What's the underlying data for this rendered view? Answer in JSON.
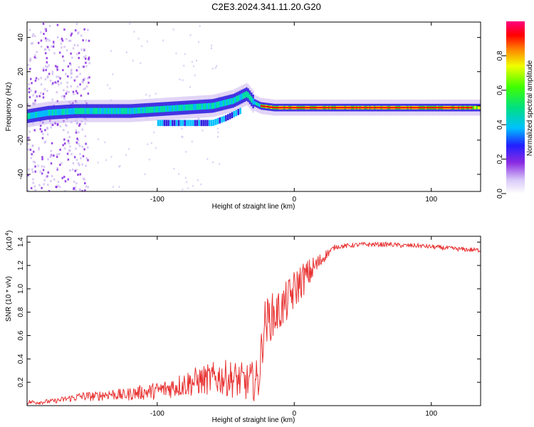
{
  "figure_title": "C2E3.2024.341.11.20.G20",
  "colors": {
    "signal_line": "#e83232",
    "axis": "#000000",
    "background": "#ffffff",
    "spectrogram_peak": "#ff0000",
    "spectrogram_mid": "#00e5a0",
    "spectrogram_low": "#3020e0",
    "spectrogram_faint": "#c8b0f0"
  },
  "chart_data": [
    {
      "type": "heatmap",
      "title": "",
      "xlabel": "Height of straight line (km)",
      "ylabel": "Frequency (Hz)",
      "xlim": [
        -195,
        136
      ],
      "ylim": [
        -50,
        49
      ],
      "x_ticks": [
        -100,
        0,
        100
      ],
      "y_ticks": [
        -40,
        -20,
        0,
        20,
        40
      ],
      "grid": false,
      "colorbar": {
        "label": "Normalized spectral amplitude",
        "range": [
          0,
          1
        ],
        "ticks": [
          "0.0",
          "0.2",
          "0.4",
          "0.6",
          "0.8"
        ],
        "colormap": "rainbow (white-violet → blue → cyan → green → yellow → red → magenta)"
      },
      "ridge": {
        "description": "dominant Doppler frequency track",
        "x_km": [
          -195,
          -180,
          -160,
          -140,
          -120,
          -100,
          -80,
          -60,
          -45,
          -35,
          -30,
          -25,
          -15,
          0,
          20,
          50,
          80,
          110,
          136
        ],
        "frequency_hz": [
          -6,
          -4,
          -3,
          -3,
          -3,
          -2,
          -1,
          0,
          3,
          7,
          2,
          0,
          -1,
          -1,
          -1,
          -1,
          -1,
          -1,
          -1
        ],
        "secondary_branch_x_km": [
          -100,
          -80,
          -60,
          -50,
          -40
        ],
        "secondary_branch_hz": [
          -10,
          -10,
          -10,
          -7,
          -3
        ],
        "peak_amplitude_region_km": [
          -25,
          136
        ]
      }
    },
    {
      "type": "line",
      "title": "",
      "xlabel": "Height of straight line (km)",
      "ylabel": "SNR (10 * v/v)",
      "y_multiplier": "(x10^4)",
      "xlim": [
        -195,
        136
      ],
      "ylim": [
        0,
        1.45
      ],
      "x_ticks": [
        -100,
        0,
        100
      ],
      "y_ticks": [
        "0.2",
        "0.4",
        "0.6",
        "0.8",
        "1.0",
        "1.2",
        "1.4"
      ],
      "grid": false,
      "series": [
        {
          "color": "#e83232",
          "x": [
            -195,
            -185,
            -175,
            -165,
            -155,
            -145,
            -135,
            -125,
            -115,
            -105,
            -95,
            -85,
            -75,
            -65,
            -55,
            -45,
            -35,
            -26,
            -24,
            -22,
            -18,
            -14,
            -10,
            -6,
            -2,
            2,
            6,
            10,
            14,
            18,
            22,
            26,
            30,
            40,
            50,
            60,
            70,
            80,
            90,
            100,
            110,
            120,
            136
          ],
          "values": [
            0.03,
            0.03,
            0.04,
            0.06,
            0.08,
            0.08,
            0.1,
            0.09,
            0.11,
            0.12,
            0.14,
            0.17,
            0.2,
            0.22,
            0.24,
            0.23,
            0.2,
            0.22,
            0.45,
            0.7,
            0.75,
            0.78,
            0.82,
            0.88,
            0.95,
            1.02,
            1.08,
            1.12,
            1.18,
            1.22,
            1.28,
            1.32,
            1.36,
            1.37,
            1.38,
            1.38,
            1.38,
            1.37,
            1.37,
            1.36,
            1.35,
            1.34,
            1.33
          ],
          "noise_amplitude": [
            0.02,
            0.02,
            0.02,
            0.03,
            0.04,
            0.04,
            0.05,
            0.05,
            0.06,
            0.07,
            0.08,
            0.1,
            0.12,
            0.13,
            0.15,
            0.16,
            0.16,
            0.18,
            0.2,
            0.2,
            0.2,
            0.2,
            0.18,
            0.18,
            0.18,
            0.17,
            0.15,
            0.13,
            0.1,
            0.08,
            0.05,
            0.03,
            0.02,
            0.02,
            0.02,
            0.02,
            0.02,
            0.02,
            0.02,
            0.02,
            0.02,
            0.02,
            0.02
          ]
        }
      ]
    }
  ]
}
